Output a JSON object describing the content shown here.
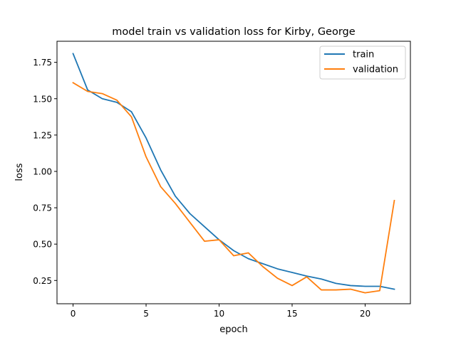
{
  "chart_data": {
    "type": "line",
    "title": "model train vs validation loss for Kirby, George",
    "xlabel": "epoch",
    "ylabel": "loss",
    "xlim": [
      -1.1,
      23.1
    ],
    "ylim": [
      0.09,
      1.895
    ],
    "x_ticks": [
      0,
      5,
      10,
      15,
      20
    ],
    "x_tick_labels": [
      "0",
      "5",
      "10",
      "15",
      "20"
    ],
    "y_ticks": [
      0.25,
      0.5,
      0.75,
      1.0,
      1.25,
      1.5,
      1.75
    ],
    "y_tick_labels": [
      "0.25",
      "0.50",
      "0.75",
      "1.00",
      "1.25",
      "1.50",
      "1.75"
    ],
    "grid": false,
    "legend_position": "top-right",
    "x": [
      0,
      1,
      2,
      3,
      4,
      5,
      6,
      7,
      8,
      9,
      10,
      11,
      12,
      13,
      14,
      15,
      16,
      17,
      18,
      19,
      20,
      21,
      22
    ],
    "series": [
      {
        "name": "train",
        "color": "#1f77b4",
        "values": [
          1.81,
          1.56,
          1.5,
          1.475,
          1.41,
          1.23,
          1.01,
          0.83,
          0.71,
          0.62,
          0.53,
          0.455,
          0.4,
          0.365,
          0.33,
          0.305,
          0.28,
          0.26,
          0.23,
          0.215,
          0.21,
          0.21,
          0.19
        ]
      },
      {
        "name": "validation",
        "color": "#ff7f0e",
        "values": [
          1.61,
          1.55,
          1.535,
          1.49,
          1.375,
          1.1,
          0.895,
          0.78,
          0.65,
          0.52,
          0.53,
          0.42,
          0.44,
          0.345,
          0.265,
          0.215,
          0.275,
          0.185,
          0.185,
          0.19,
          0.165,
          0.18,
          0.8
        ]
      }
    ]
  }
}
